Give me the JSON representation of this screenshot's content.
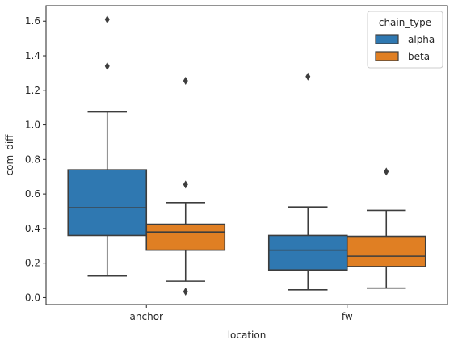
{
  "chart_data": {
    "type": "box",
    "xlabel": "location",
    "ylabel": "com_diff",
    "ylim": [
      -0.04,
      1.69
    ],
    "y_ticks": [
      0.0,
      0.2,
      0.4,
      0.6,
      0.8,
      1.0,
      1.2,
      1.4,
      1.6
    ],
    "y_tick_labels": [
      "0.0",
      "0.2",
      "0.4",
      "0.6",
      "0.8",
      "1.0",
      "1.2",
      "1.4",
      "1.6"
    ],
    "categories": [
      "anchor",
      "fw"
    ],
    "grid": false,
    "legend": {
      "title": "chain_type",
      "position": "top-right"
    },
    "series": [
      {
        "name": "alpha",
        "color": "#2f78b1",
        "boxes": [
          {
            "whisker_low": 0.125,
            "q1": 0.36,
            "median": 0.52,
            "q3": 0.74,
            "whisker_high": 1.075,
            "outliers": [
              1.34,
              1.61
            ]
          },
          {
            "whisker_low": 0.045,
            "q1": 0.16,
            "median": 0.275,
            "q3": 0.36,
            "whisker_high": 0.525,
            "outliers": [
              1.28
            ]
          }
        ]
      },
      {
        "name": "beta",
        "color": "#e07f23",
        "boxes": [
          {
            "whisker_low": 0.095,
            "q1": 0.275,
            "median": 0.38,
            "q3": 0.425,
            "whisker_high": 0.55,
            "outliers": [
              0.035,
              0.655,
              1.255
            ]
          },
          {
            "whisker_low": 0.055,
            "q1": 0.18,
            "median": 0.24,
            "q3": 0.355,
            "whisker_high": 0.505,
            "outliers": [
              0.73
            ]
          }
        ]
      }
    ]
  }
}
